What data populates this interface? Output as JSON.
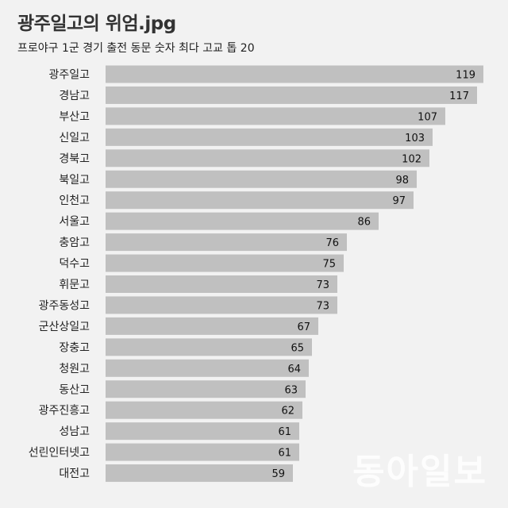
{
  "title": "광주일고의 위엄.jpg",
  "subtitle": "프로야구 1군 경기 출전 동문 숫자 최다 고교 톱 20",
  "watermark": "동아일보",
  "colors": {
    "background": "#f2f2f2",
    "bar": "#c0c0c0",
    "text": "#222222"
  },
  "chart_data": {
    "type": "bar",
    "orientation": "horizontal",
    "title": "광주일고의 위엄.jpg",
    "subtitle": "프로야구 1군 경기 출전 동문 숫자 최다 고교 톱 20",
    "categories": [
      "광주일고",
      "경남고",
      "부산고",
      "신일고",
      "경북고",
      "북일고",
      "인천고",
      "서울고",
      "충암고",
      "덕수고",
      "휘문고",
      "광주동성고",
      "군산상일고",
      "장충고",
      "청원고",
      "동산고",
      "광주진흥고",
      "성남고",
      "선린인터넷고",
      "대전고"
    ],
    "values": [
      119,
      117,
      107,
      103,
      102,
      98,
      97,
      86,
      76,
      75,
      73,
      73,
      67,
      65,
      64,
      63,
      62,
      61,
      61,
      59
    ],
    "xlim": [
      0,
      119
    ],
    "data_labels": true,
    "grid": false,
    "legend": "none"
  }
}
